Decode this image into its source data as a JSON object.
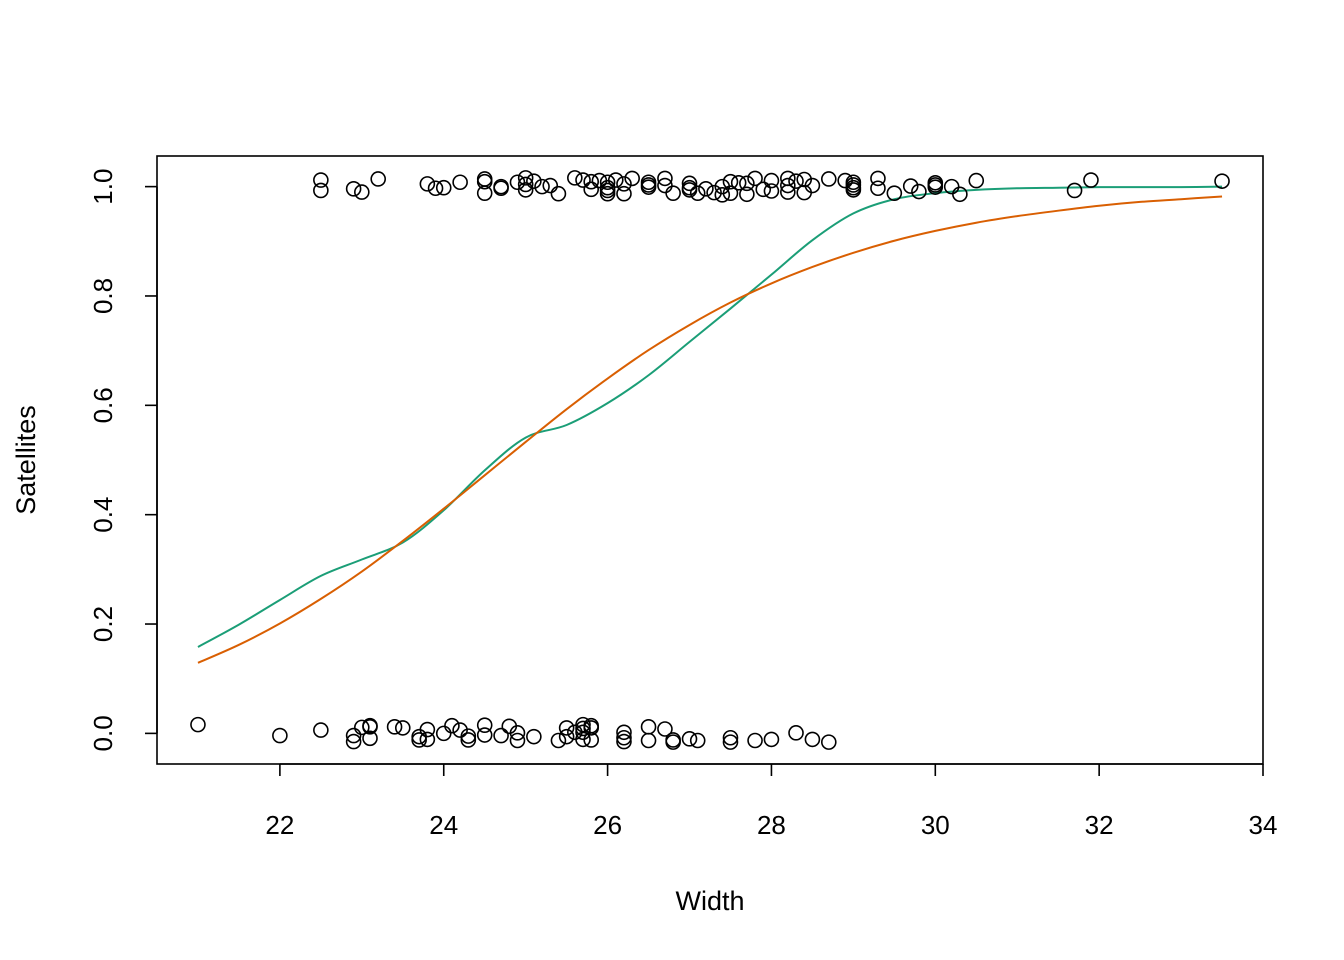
{
  "chart_data": {
    "type": "scatter",
    "title": "",
    "xlabel": "Width",
    "ylabel": "Satellites",
    "xlim": [
      20.5,
      34
    ],
    "ylim": [
      -0.056,
      1.056
    ],
    "x_ticks": [
      22,
      24,
      26,
      28,
      30,
      32,
      34
    ],
    "y_ticks": [
      0.0,
      0.2,
      0.4,
      0.6,
      0.8,
      1.0
    ],
    "x_tick_labels": [
      "22",
      "24",
      "26",
      "28",
      "30",
      "32",
      "34"
    ],
    "y_tick_labels": [
      "0.0",
      "0.2",
      "0.4",
      "0.6",
      "0.8",
      "1.0"
    ],
    "grid": false,
    "legend": "none",
    "point_marker": "open-circle",
    "colors": {
      "points": "#000000",
      "smooth_curve": "#1b9e77",
      "logistic_curve": "#d95f02"
    },
    "points_y1": [
      [
        22.5,
        1.012
      ],
      [
        22.5,
        0.993
      ],
      [
        22.9,
        0.996
      ],
      [
        23.0,
        0.99
      ],
      [
        23.2,
        1.014
      ],
      [
        23.8,
        1.005
      ],
      [
        23.9,
        0.997
      ],
      [
        24.0,
        0.998
      ],
      [
        24.2,
        1.008
      ],
      [
        24.5,
        1.014
      ],
      [
        24.5,
        1.009
      ],
      [
        24.5,
        0.988
      ],
      [
        24.7,
        1.0
      ],
      [
        24.7,
        0.997
      ],
      [
        24.9,
        1.008
      ],
      [
        25.0,
        1.016
      ],
      [
        25.0,
        1.004
      ],
      [
        25.0,
        0.994
      ],
      [
        25.1,
        1.01
      ],
      [
        25.2,
        1.0
      ],
      [
        25.3,
        1.002
      ],
      [
        25.4,
        0.987
      ],
      [
        25.6,
        1.016
      ],
      [
        25.7,
        1.012
      ],
      [
        25.8,
        0.995
      ],
      [
        25.8,
        1.009
      ],
      [
        25.9,
        1.011
      ],
      [
        26.0,
        1.008
      ],
      [
        26.0,
        0.998
      ],
      [
        26.0,
        0.993
      ],
      [
        26.0,
        0.987
      ],
      [
        26.1,
        1.012
      ],
      [
        26.2,
        1.005
      ],
      [
        26.2,
        0.987
      ],
      [
        26.3,
        1.015
      ],
      [
        26.5,
        1.008
      ],
      [
        26.5,
        1.003
      ],
      [
        26.5,
        0.999
      ],
      [
        26.7,
        1.015
      ],
      [
        26.7,
        1.002
      ],
      [
        26.8,
        0.988
      ],
      [
        27.0,
        1.006
      ],
      [
        27.0,
        0.998
      ],
      [
        27.0,
        0.994
      ],
      [
        27.1,
        0.988
      ],
      [
        27.2,
        0.996
      ],
      [
        27.3,
        0.989
      ],
      [
        27.4,
        1.0
      ],
      [
        27.4,
        0.985
      ],
      [
        27.5,
        1.009
      ],
      [
        27.5,
        0.988
      ],
      [
        27.6,
        1.007
      ],
      [
        27.7,
        1.006
      ],
      [
        27.7,
        0.986
      ],
      [
        27.8,
        1.015
      ],
      [
        27.9,
        0.995
      ],
      [
        28.0,
        1.011
      ],
      [
        28.0,
        0.992
      ],
      [
        28.2,
        1.015
      ],
      [
        28.2,
        1.002
      ],
      [
        28.2,
        0.99
      ],
      [
        28.3,
        1.01
      ],
      [
        28.4,
        1.013
      ],
      [
        28.4,
        0.989
      ],
      [
        28.5,
        1.002
      ],
      [
        28.7,
        1.014
      ],
      [
        28.9,
        1.011
      ],
      [
        29.0,
        1.008
      ],
      [
        29.0,
        1.003
      ],
      [
        29.0,
        0.998
      ],
      [
        29.0,
        0.994
      ],
      [
        29.3,
        1.015
      ],
      [
        29.3,
        0.997
      ],
      [
        29.5,
        0.988
      ],
      [
        29.7,
        1.001
      ],
      [
        29.8,
        0.991
      ],
      [
        30.0,
        1.007
      ],
      [
        30.0,
        1.003
      ],
      [
        30.0,
        0.999
      ],
      [
        30.2,
        1.0
      ],
      [
        30.3,
        0.986
      ],
      [
        30.5,
        1.011
      ],
      [
        31.7,
        0.993
      ],
      [
        31.9,
        1.012
      ],
      [
        33.5,
        1.01
      ]
    ],
    "points_y0": [
      [
        21.0,
        0.016
      ],
      [
        22.0,
        -0.004
      ],
      [
        22.5,
        0.006
      ],
      [
        22.9,
        -0.004
      ],
      [
        22.9,
        -0.015
      ],
      [
        23.0,
        0.011
      ],
      [
        23.1,
        0.014
      ],
      [
        23.1,
        0.012
      ],
      [
        23.1,
        -0.009
      ],
      [
        23.4,
        0.012
      ],
      [
        23.5,
        0.01
      ],
      [
        23.7,
        -0.006
      ],
      [
        23.7,
        -0.012
      ],
      [
        23.8,
        0.007
      ],
      [
        23.8,
        -0.011
      ],
      [
        24.0,
        0.0
      ],
      [
        24.1,
        0.014
      ],
      [
        24.2,
        0.006
      ],
      [
        24.3,
        -0.005
      ],
      [
        24.3,
        -0.012
      ],
      [
        24.5,
        0.015
      ],
      [
        24.5,
        -0.003
      ],
      [
        24.7,
        -0.004
      ],
      [
        24.8,
        0.013
      ],
      [
        24.9,
        0.001
      ],
      [
        24.9,
        -0.013
      ],
      [
        25.1,
        -0.006
      ],
      [
        25.4,
        -0.013
      ],
      [
        25.5,
        0.01
      ],
      [
        25.5,
        -0.006
      ],
      [
        25.6,
        0.002
      ],
      [
        25.7,
        0.016
      ],
      [
        25.7,
        0.009
      ],
      [
        25.7,
        0.002
      ],
      [
        25.7,
        -0.011
      ],
      [
        25.8,
        0.014
      ],
      [
        25.8,
        0.01
      ],
      [
        25.8,
        -0.012
      ],
      [
        26.2,
        0.002
      ],
      [
        26.2,
        -0.008
      ],
      [
        26.2,
        -0.015
      ],
      [
        26.5,
        0.012
      ],
      [
        26.5,
        -0.013
      ],
      [
        26.7,
        0.008
      ],
      [
        26.8,
        -0.012
      ],
      [
        26.8,
        -0.016
      ],
      [
        27.0,
        -0.01
      ],
      [
        27.1,
        -0.013
      ],
      [
        27.5,
        -0.008
      ],
      [
        27.5,
        -0.016
      ],
      [
        27.8,
        -0.013
      ],
      [
        28.0,
        -0.011
      ],
      [
        28.3,
        0.001
      ],
      [
        28.5,
        -0.011
      ],
      [
        28.7,
        -0.016
      ]
    ],
    "series": [
      {
        "x": [
          21.0,
          21.5,
          22.0,
          22.5,
          23.0,
          23.5,
          24.0,
          24.5,
          25.0,
          25.5,
          26.0,
          26.5,
          27.0,
          27.5,
          28.0,
          28.5,
          29.0,
          29.5,
          30.0,
          30.5,
          31.0,
          31.5,
          32.0,
          32.5,
          33.0,
          33.5
        ],
        "y": [
          0.158,
          0.199,
          0.244,
          0.288,
          0.318,
          0.349,
          0.408,
          0.481,
          0.541,
          0.564,
          0.604,
          0.655,
          0.716,
          0.777,
          0.839,
          0.902,
          0.951,
          0.977,
          0.988,
          0.994,
          0.997,
          0.998,
          0.999,
          0.999,
          0.999,
          1.0
        ]
      },
      {
        "x": [
          21.0,
          21.5,
          22.0,
          22.5,
          23.0,
          23.5,
          24.0,
          24.5,
          25.0,
          25.5,
          26.0,
          26.5,
          27.0,
          27.5,
          28.0,
          28.5,
          29.0,
          29.5,
          30.0,
          30.5,
          31.0,
          31.5,
          32.0,
          32.5,
          33.0,
          33.5
        ],
        "y": [
          0.129,
          0.162,
          0.201,
          0.246,
          0.296,
          0.352,
          0.411,
          0.472,
          0.533,
          0.593,
          0.649,
          0.701,
          0.747,
          0.788,
          0.823,
          0.853,
          0.879,
          0.901,
          0.919,
          0.934,
          0.946,
          0.956,
          0.965,
          0.972,
          0.977,
          0.982
        ]
      }
    ]
  }
}
